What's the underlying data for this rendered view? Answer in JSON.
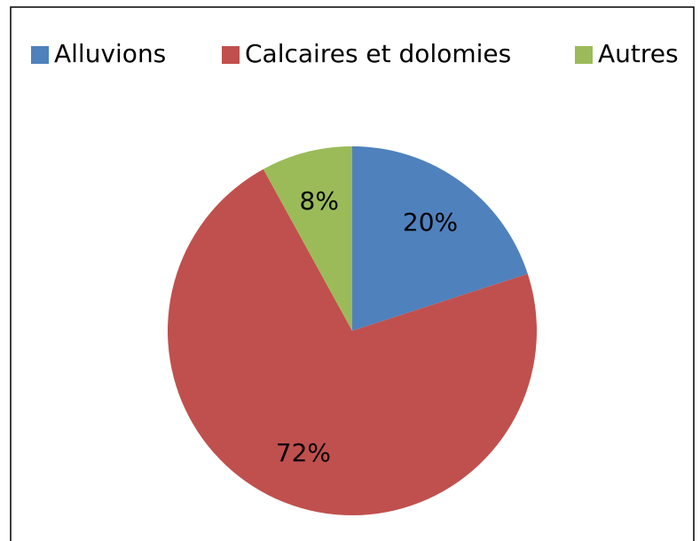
{
  "chart_data": {
    "type": "pie",
    "categories": [
      "Alluvions",
      "Calcaires et dolomies",
      "Autres"
    ],
    "values": [
      20,
      72,
      8
    ],
    "value_labels": [
      "20%",
      "72%",
      "8%"
    ],
    "colors": [
      "#4f81bd",
      "#c0504d",
      "#9bbb59"
    ],
    "legend": "top"
  }
}
